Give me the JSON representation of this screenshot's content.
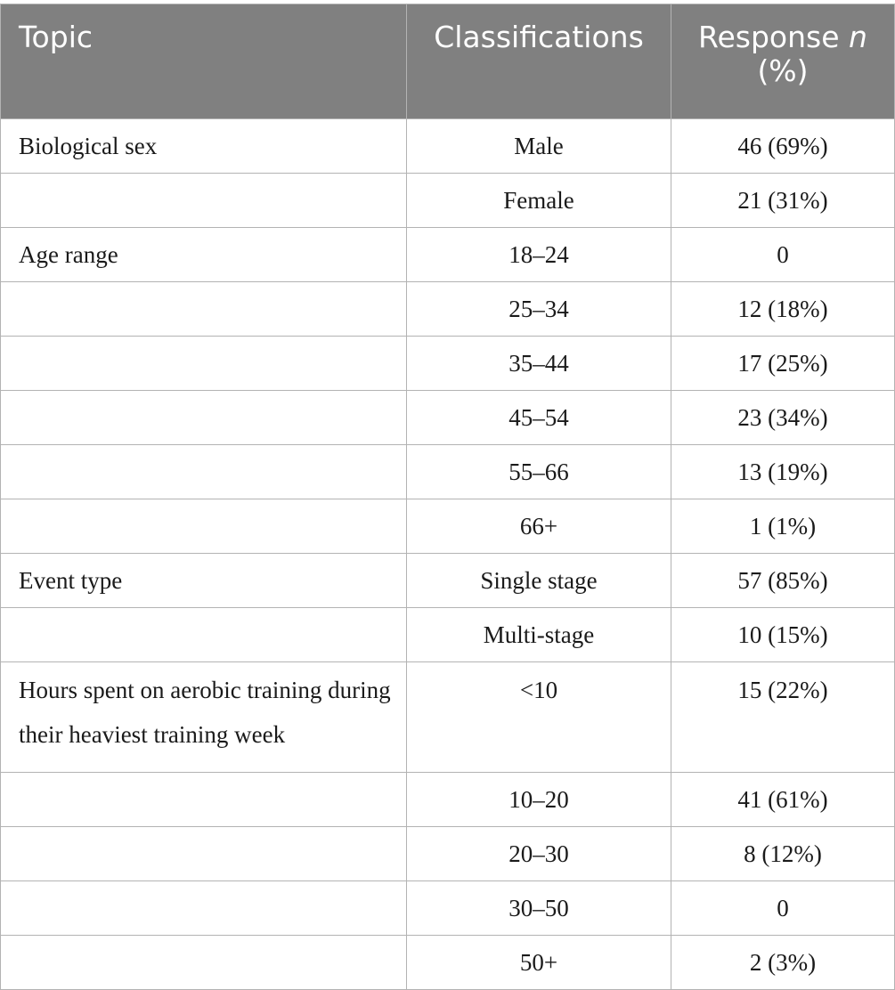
{
  "table": {
    "headers": {
      "topic": "Topic",
      "classifications": "Classifications",
      "response_prefix": "Response ",
      "response_italic": "n",
      "response_suffix": "(%)"
    },
    "rows": [
      {
        "topic": "Biological sex",
        "classification": "Male",
        "response": "46 (69%)"
      },
      {
        "topic": "",
        "classification": "Female",
        "response": "21 (31%)"
      },
      {
        "topic": "Age range",
        "classification": "18–24",
        "response": "0"
      },
      {
        "topic": "",
        "classification": "25–34",
        "response": "12 (18%)"
      },
      {
        "topic": "",
        "classification": "35–44",
        "response": "17 (25%)"
      },
      {
        "topic": "",
        "classification": "45–54",
        "response": "23 (34%)"
      },
      {
        "topic": "",
        "classification": "55–66",
        "response": "13 (19%)"
      },
      {
        "topic": "",
        "classification": "66+",
        "response": "1 (1%)"
      },
      {
        "topic": "Event type",
        "classification": "Single stage",
        "response": "57 (85%)"
      },
      {
        "topic": "",
        "classification": "Multi-stage",
        "response": "10 (15%)"
      },
      {
        "topic": "Hours spent on aerobic training during their heaviest training week",
        "classification": "<10",
        "response": "15 (22%)"
      },
      {
        "topic": "",
        "classification": "10–20",
        "response": "41 (61%)"
      },
      {
        "topic": "",
        "classification": "20–30",
        "response": "8 (12%)"
      },
      {
        "topic": "",
        "classification": "30–50",
        "response": "0"
      },
      {
        "topic": "",
        "classification": "50+",
        "response": "2 (3%)"
      }
    ]
  },
  "colors": {
    "header_background": "#808080",
    "header_text": "#ffffff",
    "border": "#b3b3b3"
  }
}
